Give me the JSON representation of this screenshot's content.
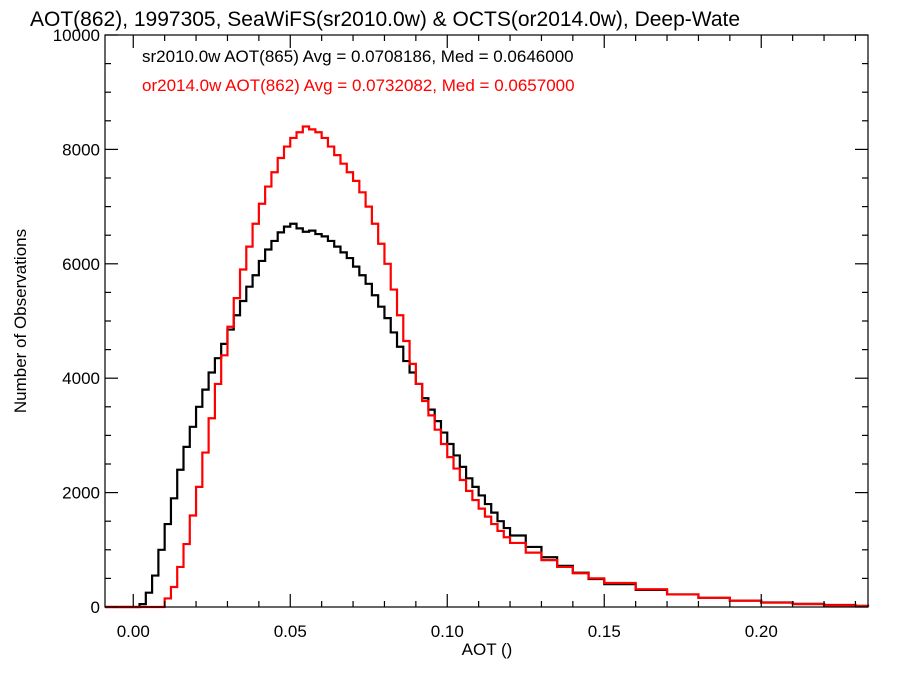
{
  "chart_data": {
    "type": "line",
    "title": "AOT(862), 1997305, SeaWiFS(sr2010.0w) & OCTS(or2014.0w), Deep-Wate",
    "xlabel": "AOT ()",
    "ylabel": "Number of Observations",
    "xlim": [
      -0.009,
      0.234
    ],
    "ylim": [
      0,
      10000
    ],
    "grid": false,
    "legend_placement": "top-left",
    "x_ticks": [
      0.0,
      0.05,
      0.1,
      0.15,
      0.2
    ],
    "x_tick_labels": [
      "0.00",
      "0.05",
      "0.10",
      "0.15",
      "0.20"
    ],
    "y_ticks": [
      0,
      2000,
      4000,
      6000,
      8000,
      10000
    ],
    "y_tick_labels": [
      "0",
      "2000",
      "4000",
      "6000",
      "8000",
      "10000"
    ],
    "series": [
      {
        "name": "sr2010.0w AOT(865) Avg = 0.0708186, Med = 0.0646000",
        "color": "#000000",
        "x": [
          -0.009,
          0.0,
          0.002,
          0.004,
          0.006,
          0.008,
          0.01,
          0.012,
          0.014,
          0.016,
          0.018,
          0.02,
          0.022,
          0.024,
          0.026,
          0.028,
          0.03,
          0.032,
          0.034,
          0.036,
          0.038,
          0.04,
          0.042,
          0.044,
          0.046,
          0.048,
          0.05,
          0.052,
          0.054,
          0.056,
          0.058,
          0.06,
          0.062,
          0.064,
          0.066,
          0.068,
          0.07,
          0.072,
          0.074,
          0.076,
          0.078,
          0.08,
          0.082,
          0.084,
          0.086,
          0.088,
          0.09,
          0.092,
          0.094,
          0.096,
          0.098,
          0.1,
          0.102,
          0.104,
          0.106,
          0.108,
          0.11,
          0.112,
          0.114,
          0.116,
          0.118,
          0.12,
          0.125,
          0.13,
          0.135,
          0.14,
          0.145,
          0.15,
          0.16,
          0.17,
          0.18,
          0.19,
          0.2,
          0.21,
          0.22,
          0.23,
          0.234
        ],
        "y": [
          0,
          0,
          50,
          250,
          550,
          1000,
          1450,
          1900,
          2400,
          2800,
          3150,
          3500,
          3800,
          4100,
          4350,
          4600,
          4850,
          5100,
          5350,
          5600,
          5800,
          6050,
          6250,
          6400,
          6550,
          6650,
          6700,
          6620,
          6560,
          6580,
          6520,
          6480,
          6400,
          6300,
          6200,
          6100,
          5950,
          5800,
          5650,
          5450,
          5250,
          5050,
          4800,
          4550,
          4300,
          4100,
          3900,
          3650,
          3450,
          3250,
          3050,
          2850,
          2650,
          2450,
          2250,
          2100,
          1950,
          1800,
          1650,
          1500,
          1380,
          1250,
          1050,
          870,
          720,
          600,
          490,
          400,
          300,
          220,
          160,
          110,
          80,
          55,
          35,
          20,
          10
        ]
      },
      {
        "name": "or2014.0w AOT(862) Avg = 0.0732082, Med = 0.0657000",
        "color": "#ff0000",
        "x": [
          -0.009,
          0.008,
          0.01,
          0.012,
          0.014,
          0.016,
          0.018,
          0.02,
          0.022,
          0.024,
          0.026,
          0.028,
          0.03,
          0.032,
          0.034,
          0.036,
          0.038,
          0.04,
          0.042,
          0.044,
          0.046,
          0.048,
          0.05,
          0.052,
          0.054,
          0.056,
          0.058,
          0.06,
          0.062,
          0.064,
          0.066,
          0.068,
          0.07,
          0.072,
          0.074,
          0.076,
          0.078,
          0.08,
          0.082,
          0.084,
          0.086,
          0.088,
          0.09,
          0.092,
          0.094,
          0.096,
          0.098,
          0.1,
          0.102,
          0.104,
          0.106,
          0.108,
          0.11,
          0.112,
          0.114,
          0.116,
          0.118,
          0.12,
          0.125,
          0.13,
          0.135,
          0.14,
          0.145,
          0.15,
          0.16,
          0.17,
          0.18,
          0.19,
          0.2,
          0.21,
          0.22,
          0.23,
          0.234
        ],
        "y": [
          0,
          0,
          150,
          350,
          700,
          1100,
          1600,
          2100,
          2700,
          3300,
          3900,
          4400,
          4900,
          5400,
          5900,
          6300,
          6700,
          7050,
          7350,
          7600,
          7850,
          8050,
          8200,
          8300,
          8400,
          8350,
          8300,
          8200,
          8050,
          7900,
          7750,
          7600,
          7450,
          7250,
          7000,
          6700,
          6350,
          6000,
          5550,
          5100,
          4650,
          4250,
          3900,
          3600,
          3350,
          3100,
          2850,
          2620,
          2420,
          2220,
          2030,
          1870,
          1720,
          1580,
          1450,
          1330,
          1220,
          1120,
          950,
          820,
          700,
          590,
          500,
          420,
          310,
          220,
          160,
          110,
          75,
          50,
          30,
          15,
          5
        ]
      }
    ]
  }
}
